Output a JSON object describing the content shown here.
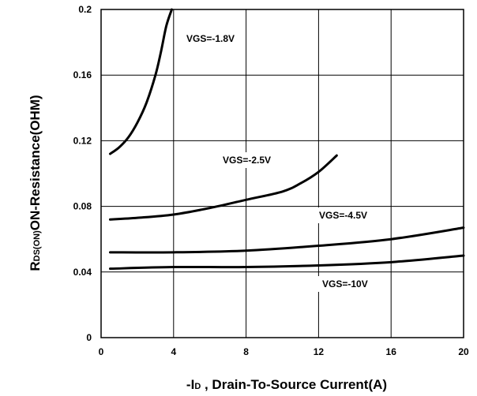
{
  "chart_data": {
    "type": "line",
    "xlabel_prefix": "-I",
    "xlabel_subscript": "D",
    "xlabel_suffix": " , Drain-To-Source Current(A)",
    "ylabel_prefix": "R",
    "ylabel_subscript": "DS(ON)",
    "ylabel_suffix": "ON-Resistance(OHM)",
    "xlim": [
      0,
      20
    ],
    "ylim": [
      0,
      0.2
    ],
    "x_ticks": [
      "0",
      "4",
      "8",
      "12",
      "16",
      "20"
    ],
    "y_ticks": [
      "0",
      "0.04",
      "0.08",
      "0.12",
      "0.16",
      "0.2"
    ],
    "grid": true,
    "series": [
      {
        "name": "VGS=-1.8V",
        "x": [
          0.5,
          1.0,
          1.5,
          2.0,
          2.5,
          3.0,
          3.3,
          3.6,
          3.9
        ],
        "y": [
          0.112,
          0.116,
          0.122,
          0.131,
          0.143,
          0.16,
          0.174,
          0.19,
          0.2
        ]
      },
      {
        "name": "VGS=-2.5V",
        "x": [
          0.5,
          2,
          4,
          6,
          8,
          10,
          11,
          12,
          13
        ],
        "y": [
          0.072,
          0.073,
          0.075,
          0.079,
          0.084,
          0.089,
          0.094,
          0.101,
          0.111
        ]
      },
      {
        "name": "VGS=-4.5V",
        "x": [
          0.5,
          4,
          8,
          12,
          16,
          20
        ],
        "y": [
          0.052,
          0.052,
          0.053,
          0.056,
          0.06,
          0.067
        ]
      },
      {
        "name": "VGS=-10V",
        "x": [
          0.5,
          4,
          8,
          12,
          16,
          20
        ],
        "y": [
          0.042,
          0.043,
          0.043,
          0.044,
          0.046,
          0.05
        ]
      }
    ]
  }
}
